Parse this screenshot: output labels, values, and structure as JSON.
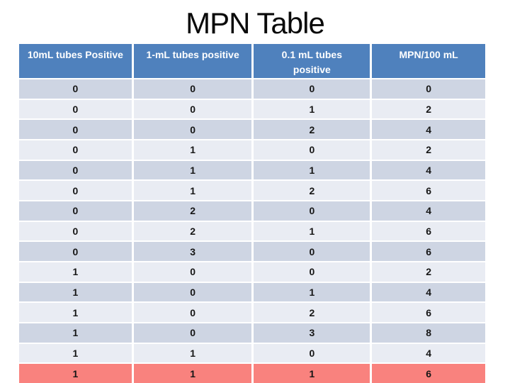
{
  "page": {
    "title": "MPN Table",
    "background": "#ffffff"
  },
  "table": {
    "columns": [
      "10mL tubes Positive",
      "1-mL  tubes positive",
      "0.1 mL tubes\npositive",
      "MPN/100 mL"
    ],
    "rows": [
      [
        "0",
        "0",
        "0",
        "0"
      ],
      [
        "0",
        "0",
        "1",
        "2"
      ],
      [
        "0",
        "0",
        "2",
        "4"
      ],
      [
        "0",
        "1",
        "0",
        "2"
      ],
      [
        "0",
        "1",
        "1",
        "4"
      ],
      [
        "0",
        "1",
        "2",
        "6"
      ],
      [
        "0",
        "2",
        "0",
        "4"
      ],
      [
        "0",
        "2",
        "1",
        "6"
      ],
      [
        "0",
        "3",
        "0",
        "6"
      ],
      [
        "1",
        "0",
        "0",
        "2"
      ],
      [
        "1",
        "0",
        "1",
        "4"
      ],
      [
        "1",
        "0",
        "2",
        "6"
      ],
      [
        "1",
        "0",
        "3",
        "8"
      ],
      [
        "1",
        "1",
        "0",
        "4"
      ],
      [
        "1",
        "1",
        "1",
        "6"
      ]
    ],
    "highlight_row_index": 14,
    "colors": {
      "header_bg": "#4f81bd",
      "header_text": "#ffffff",
      "row_even_bg": "#ced5e3",
      "row_odd_bg": "#e9ecf3",
      "highlight_bg": "#f9827e",
      "grid_line": "#ffffff",
      "cell_text": "#161616"
    }
  }
}
